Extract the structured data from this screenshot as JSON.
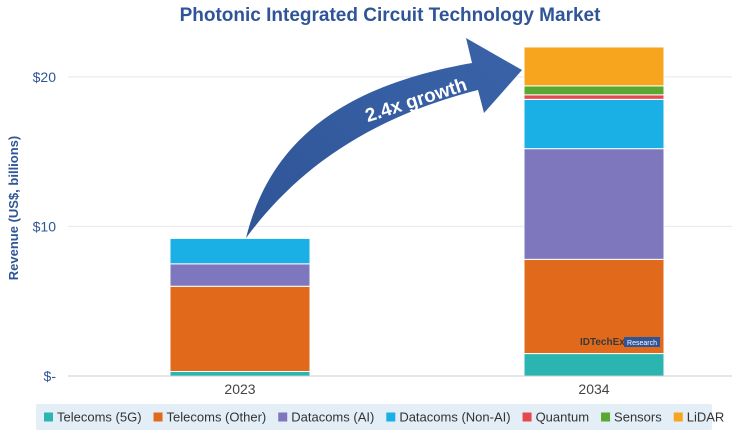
{
  "chart_data": {
    "type": "bar",
    "stacked": true,
    "title": "Photonic Integrated Circuit Technology Market",
    "ylabel": "Revenue (US$, billions)",
    "xlabel": "",
    "ylim": [
      0,
      23
    ],
    "yticks": [
      0,
      10,
      20
    ],
    "ytick_labels": [
      "$-",
      "$10",
      "$20"
    ],
    "categories": [
      "2023",
      "2034"
    ],
    "series": [
      {
        "name": "Telecoms (5G)",
        "color": "#2bb5b0",
        "values": [
          0.3,
          1.5
        ]
      },
      {
        "name": "Telecoms (Other)",
        "color": "#e0691b",
        "values": [
          5.7,
          6.3
        ]
      },
      {
        "name": "Datacoms (AI)",
        "color": "#7f77bd",
        "values": [
          1.5,
          7.4
        ]
      },
      {
        "name": "Datacoms (Non-AI)",
        "color": "#1ab0e6",
        "values": [
          1.7,
          3.3
        ]
      },
      {
        "name": "Quantum",
        "color": "#e5484d",
        "values": [
          0,
          0.3
        ]
      },
      {
        "name": "Sensors",
        "color": "#5aa832",
        "values": [
          0,
          0.6
        ]
      },
      {
        "name": "LiDAR",
        "color": "#f7a51f",
        "values": [
          0,
          2.6
        ]
      }
    ],
    "legend_position": "bottom",
    "grid": true,
    "annotation": "2.4x growth"
  },
  "branding": {
    "name": "IDTechEx",
    "tag": "Research"
  },
  "colors": {
    "title": "#2f5597",
    "axis_text": "#2f5597",
    "arrow": "#2f5597",
    "legend_bg": "#e3eef7"
  }
}
